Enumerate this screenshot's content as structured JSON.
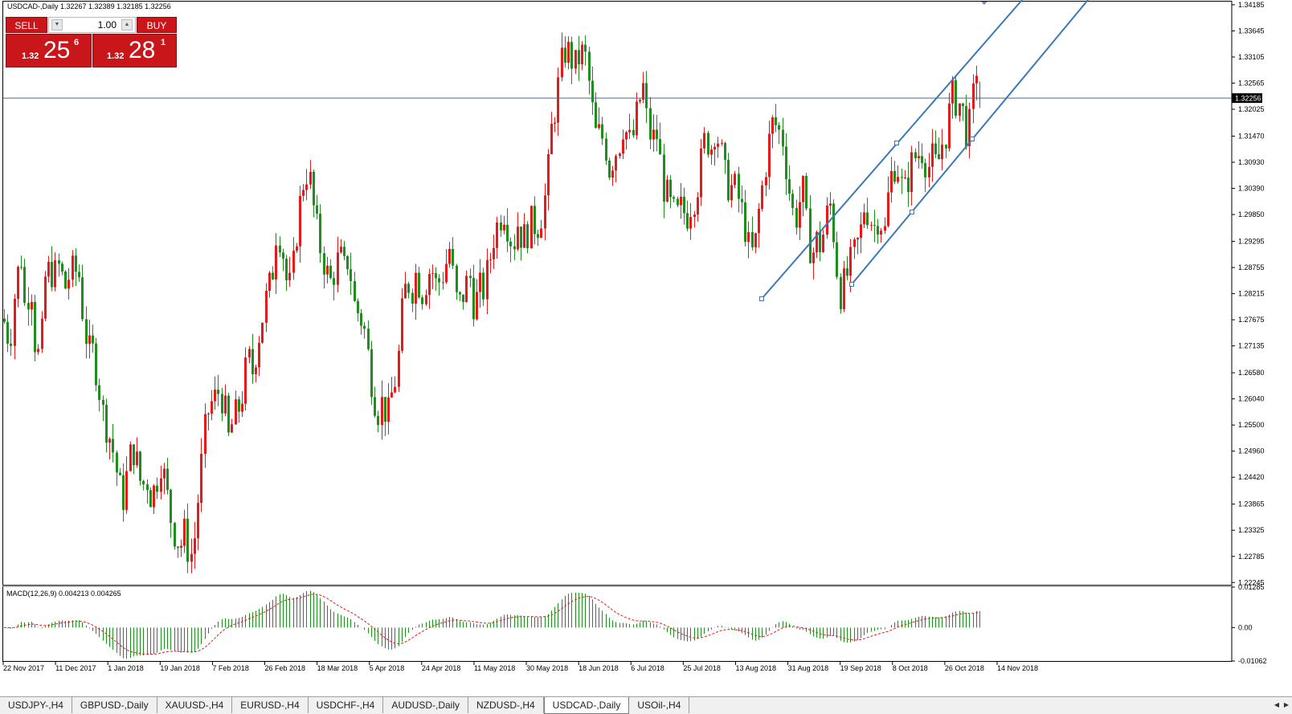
{
  "chart": {
    "title": "USDCAD-,Daily  1.32267 1.32389 1.32185 1.32256",
    "macd_title": "MACD(12,26,9) 0.004213 0.004265"
  },
  "trade_panel": {
    "sell_label": "SELL",
    "buy_label": "BUY",
    "lot": "1.00",
    "sell_price": {
      "prefix": "1.32",
      "big": "25",
      "sup": "6"
    },
    "buy_price": {
      "prefix": "1.32",
      "big": "28",
      "sup": "1"
    }
  },
  "tabs": [
    {
      "label": "USDJPY-,H4",
      "active": false
    },
    {
      "label": "GBPUSD-,Daily",
      "active": false
    },
    {
      "label": "XAUUSD-,H4",
      "active": false
    },
    {
      "label": "EURUSD-,H4",
      "active": false
    },
    {
      "label": "USDCHF-,H4",
      "active": false
    },
    {
      "label": "AUDUSD-,Daily",
      "active": false
    },
    {
      "label": "NZDUSD-,H4",
      "active": false
    },
    {
      "label": "USDCAD-,Daily",
      "active": true
    },
    {
      "label": "USOil-,H4",
      "active": false
    }
  ],
  "chart_data": [
    {
      "type": "candlestick",
      "symbol": "USDCAD",
      "timeframe": "Daily",
      "ohlc_last": {
        "open": 1.32267,
        "high": 1.32389,
        "low": 1.32185,
        "close": 1.32256
      },
      "current_price": 1.32256,
      "y_ticks": [
        "1.34185",
        "1.33645",
        "1.33105",
        "1.32565",
        "1.32025",
        "1.31470",
        "1.30930",
        "1.30390",
        "1.29850",
        "1.29295",
        "1.28755",
        "1.28215",
        "1.27675",
        "1.27135",
        "1.26580",
        "1.26040",
        "1.25500",
        "1.24960",
        "1.24420",
        "1.23865",
        "1.23325",
        "1.22785",
        "1.22245"
      ],
      "x_ticks": [
        "22 Nov 2017",
        "11 Dec 2017",
        "1 Jan 2018",
        "19 Jan 2018",
        "7 Feb 2018",
        "26 Feb 2018",
        "18 Mar 2018",
        "5 Apr 2018",
        "24 Apr 2018",
        "11 May 2018",
        "30 May 2018",
        "18 Jun 2018",
        "6 Jul 2018",
        "25 Jul 2018",
        "13 Aug 2018",
        "31 Aug 2018",
        "19 Sep 2018",
        "8 Oct 2018",
        "26 Oct 2018",
        "14 Nov 2018"
      ],
      "ylim": [
        1.222,
        1.3425
      ],
      "up_color": "#e51b1b",
      "down_color": "#1e8f1e",
      "close_path": [
        [
          0,
          1.277
        ],
        [
          8,
          1.272
        ],
        [
          15,
          1.284
        ],
        [
          22,
          1.29
        ],
        [
          28,
          1.276
        ],
        [
          33,
          1.288
        ],
        [
          40,
          1.27
        ],
        [
          46,
          1.269
        ],
        [
          52,
          1.286
        ],
        [
          58,
          1.287
        ],
        [
          64,
          1.286
        ],
        [
          70,
          1.288
        ],
        [
          76,
          1.283
        ],
        [
          82,
          1.286
        ],
        [
          88,
          1.287
        ],
        [
          94,
          1.286
        ],
        [
          100,
          1.276
        ],
        [
          106,
          1.27
        ],
        [
          112,
          1.27
        ],
        [
          118,
          1.264
        ],
        [
          124,
          1.257
        ],
        [
          130,
          1.254
        ],
        [
          136,
          1.25
        ],
        [
          142,
          1.244
        ],
        [
          148,
          1.239
        ],
        [
          154,
          1.245
        ],
        [
          160,
          1.251
        ],
        [
          166,
          1.247
        ],
        [
          172,
          1.242
        ],
        [
          178,
          1.244
        ],
        [
          184,
          1.24
        ],
        [
          190,
          1.243
        ],
        [
          196,
          1.248
        ],
        [
          202,
          1.242
        ],
        [
          208,
          1.236
        ],
        [
          214,
          1.232
        ],
        [
          220,
          1.23
        ],
        [
          226,
          1.233
        ],
        [
          232,
          1.227
        ],
        [
          238,
          1.232
        ],
        [
          244,
          1.243
        ],
        [
          250,
          1.253
        ],
        [
          256,
          1.259
        ],
        [
          262,
          1.26
        ],
        [
          268,
          1.262
        ],
        [
          274,
          1.26
        ],
        [
          280,
          1.252
        ],
        [
          286,
          1.256
        ],
        [
          292,
          1.258
        ],
        [
          298,
          1.262
        ],
        [
          304,
          1.269
        ],
        [
          310,
          1.266
        ],
        [
          316,
          1.272
        ],
        [
          322,
          1.277
        ],
        [
          328,
          1.282
        ],
        [
          334,
          1.285
        ],
        [
          340,
          1.296
        ],
        [
          346,
          1.293
        ],
        [
          352,
          1.285
        ],
        [
          358,
          1.283
        ],
        [
          364,
          1.294
        ],
        [
          370,
          1.302
        ],
        [
          376,
          1.308
        ],
        [
          382,
          1.305
        ],
        [
          388,
          1.297
        ],
        [
          394,
          1.292
        ],
        [
          400,
          1.288
        ],
        [
          406,
          1.284
        ],
        [
          412,
          1.287
        ],
        [
          418,
          1.29
        ],
        [
          424,
          1.287
        ],
        [
          430,
          1.29
        ],
        [
          436,
          1.28
        ],
        [
          442,
          1.278
        ],
        [
          448,
          1.276
        ],
        [
          454,
          1.269
        ],
        [
          460,
          1.262
        ],
        [
          466,
          1.258
        ],
        [
          472,
          1.26
        ],
        [
          478,
          1.256
        ],
        [
          484,
          1.262
        ],
        [
          490,
          1.266
        ],
        [
          496,
          1.278
        ],
        [
          502,
          1.285
        ],
        [
          508,
          1.283
        ],
        [
          514,
          1.287
        ],
        [
          520,
          1.282
        ],
        [
          526,
          1.285
        ],
        [
          532,
          1.288
        ],
        [
          538,
          1.284
        ],
        [
          544,
          1.285
        ],
        [
          550,
          1.288
        ],
        [
          556,
          1.292
        ],
        [
          562,
          1.281
        ],
        [
          568,
          1.28
        ],
        [
          574,
          1.283
        ],
        [
          580,
          1.286
        ],
        [
          586,
          1.279
        ],
        [
          592,
          1.283
        ],
        [
          598,
          1.283
        ],
        [
          604,
          1.288
        ],
        [
          610,
          1.294
        ],
        [
          616,
          1.297
        ],
        [
          622,
          1.3
        ],
        [
          628,
          1.296
        ],
        [
          634,
          1.292
        ],
        [
          640,
          1.297
        ],
        [
          646,
          1.293
        ],
        [
          652,
          1.295
        ],
        [
          658,
          1.297
        ],
        [
          664,
          1.296
        ],
        [
          670,
          1.299
        ],
        [
          676,
          1.304
        ],
        [
          682,
          1.316
        ],
        [
          688,
          1.322
        ],
        [
          694,
          1.329
        ],
        [
          700,
          1.333
        ],
        [
          706,
          1.331
        ],
        [
          712,
          1.329
        ],
        [
          718,
          1.332
        ],
        [
          724,
          1.331
        ],
        [
          730,
          1.324
        ],
        [
          736,
          1.315
        ],
        [
          742,
          1.315
        ],
        [
          748,
          1.314
        ],
        [
          754,
          1.308
        ],
        [
          760,
          1.311
        ],
        [
          766,
          1.313
        ],
        [
          772,
          1.318
        ],
        [
          778,
          1.313
        ],
        [
          784,
          1.315
        ],
        [
          790,
          1.321
        ],
        [
          796,
          1.325
        ],
        [
          802,
          1.316
        ],
        [
          808,
          1.314
        ],
        [
          814,
          1.315
        ],
        [
          820,
          1.305
        ],
        [
          826,
          1.302
        ],
        [
          832,
          1.299
        ],
        [
          838,
          1.298
        ],
        [
          844,
          1.3
        ],
        [
          850,
          1.298
        ],
        [
          856,
          1.301
        ],
        [
          862,
          1.303
        ],
        [
          868,
          1.309
        ],
        [
          874,
          1.315
        ],
        [
          880,
          1.312
        ],
        [
          886,
          1.317
        ],
        [
          892,
          1.312
        ],
        [
          898,
          1.306
        ],
        [
          904,
          1.304
        ],
        [
          910,
          1.304
        ],
        [
          916,
          1.301
        ],
        [
          922,
          1.297
        ],
        [
          928,
          1.291
        ],
        [
          934,
          1.29
        ],
        [
          940,
          1.299
        ],
        [
          946,
          1.306
        ],
        [
          952,
          1.313
        ],
        [
          958,
          1.318
        ],
        [
          964,
          1.316
        ],
        [
          970,
          1.314
        ],
        [
          976,
          1.306
        ],
        [
          982,
          1.299
        ],
        [
          988,
          1.298
        ],
        [
          994,
          1.305
        ],
        [
          1000,
          1.295
        ],
        [
          1006,
          1.29
        ],
        [
          1012,
          1.293
        ],
        [
          1018,
          1.292
        ],
        [
          1024,
          1.298
        ],
        [
          1030,
          1.301
        ],
        [
          1036,
          1.289
        ],
        [
          1042,
          1.282
        ],
        [
          1048,
          1.285
        ],
        [
          1054,
          1.288
        ],
        [
          1060,
          1.291
        ],
        [
          1066,
          1.294
        ],
        [
          1072,
          1.301
        ],
        [
          1078,
          1.298
        ],
        [
          1084,
          1.296
        ],
        [
          1090,
          1.299
        ],
        [
          1096,
          1.294
        ],
        [
          1102,
          1.304
        ],
        [
          1108,
          1.309
        ],
        [
          1114,
          1.308
        ],
        [
          1120,
          1.302
        ],
        [
          1126,
          1.306
        ],
        [
          1132,
          1.31
        ],
        [
          1138,
          1.311
        ],
        [
          1144,
          1.312
        ],
        [
          1150,
          1.308
        ],
        [
          1156,
          1.31
        ],
        [
          1162,
          1.308
        ],
        [
          1168,
          1.313
        ],
        [
          1174,
          1.316
        ],
        [
          1180,
          1.323
        ],
        [
          1186,
          1.322
        ],
        [
          1192,
          1.321
        ],
        [
          1198,
          1.316
        ],
        [
          1204,
          1.317
        ],
        [
          1210,
          1.33
        ],
        [
          1216,
          1.3226
        ]
      ]
    },
    {
      "type": "bar",
      "indicator": "MACD(12,26,9)",
      "values": {
        "macd": 0.004213,
        "signal": 0.004265
      },
      "y_ticks": [
        "0.01285",
        "0.00",
        "-0.01062"
      ],
      "ylim": [
        -0.01062,
        0.01285
      ],
      "histogram_color": "#1e8f1e",
      "signal_color": "#e51b1b"
    }
  ],
  "drawings": {
    "channel_color": "#3a78b6",
    "price_line_color": "#4e6a80"
  }
}
